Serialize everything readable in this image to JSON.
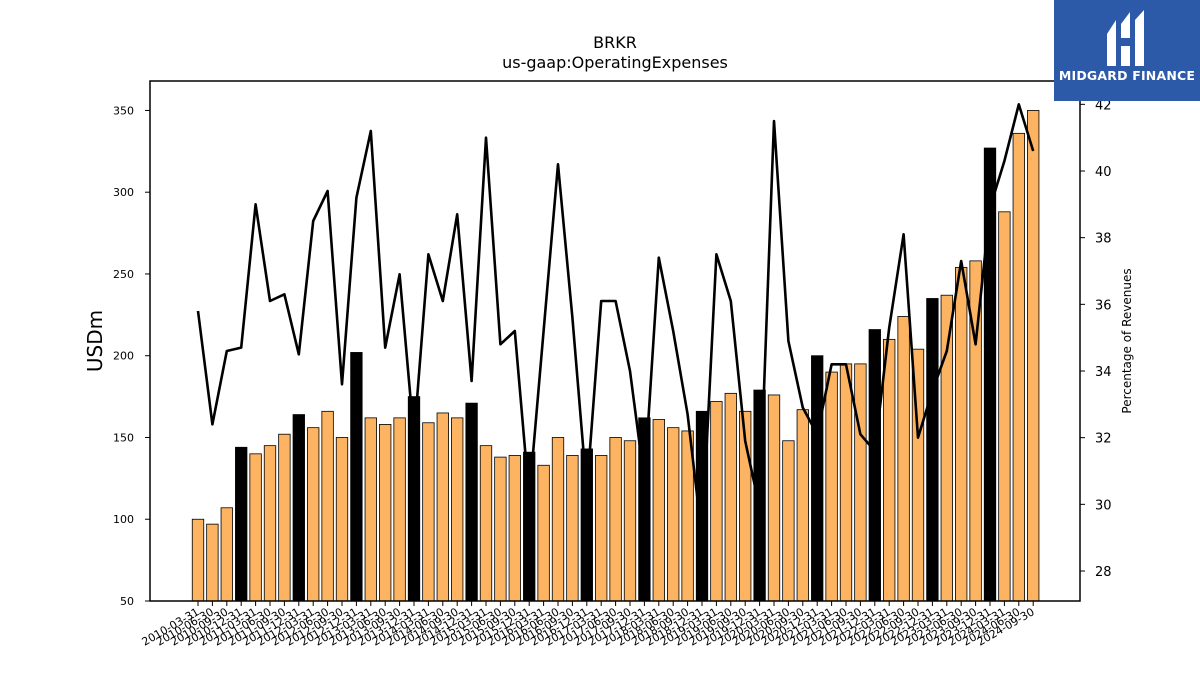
{
  "logo": {
    "text": "MIDGARD FINANCE",
    "background": "#2d5aa8"
  },
  "chart_data": {
    "type": "bar",
    "title": "BRKR",
    "subtitle": "us-gaap:OperatingExpenses",
    "ylabel": "USDm",
    "ylabel_right": "Percentage of Revenues",
    "ylim": [
      50,
      368
    ],
    "ylim_right": [
      27.1,
      42.7
    ],
    "yticks": [
      50,
      100,
      150,
      200,
      250,
      300,
      350
    ],
    "yticks_right": [
      28,
      30,
      32,
      34,
      36,
      38,
      40,
      42
    ],
    "grid": false,
    "legend": "none",
    "colors": {
      "quarter_bar": "#fdb462",
      "year_end_bar": "#000000",
      "line": "#000000"
    },
    "categories": [
      "2010-03-31",
      "2010-06-30",
      "2010-09-30",
      "2010-12-31",
      "2011-03-31",
      "2011-06-30",
      "2011-09-30",
      "2011-12-31",
      "2012-03-31",
      "2012-06-30",
      "2012-09-30",
      "2012-12-31",
      "2013-03-31",
      "2013-06-30",
      "2013-09-30",
      "2013-12-31",
      "2014-03-31",
      "2014-06-30",
      "2014-09-30",
      "2014-12-31",
      "2015-03-31",
      "2015-06-30",
      "2015-09-30",
      "2015-12-31",
      "2016-03-31",
      "2016-06-30",
      "2016-09-30",
      "2016-12-31",
      "2017-03-31",
      "2017-06-30",
      "2017-09-30",
      "2017-12-31",
      "2018-03-31",
      "2018-06-30",
      "2018-09-30",
      "2018-12-31",
      "2019-03-31",
      "2019-06-30",
      "2019-09-30",
      "2019-12-31",
      "2020-03-31",
      "2020-06-30",
      "2020-09-30",
      "2020-12-31",
      "2021-03-31",
      "2021-06-30",
      "2021-09-30",
      "2021-12-31",
      "2022-03-31",
      "2022-06-30",
      "2022-09-30",
      "2022-12-31",
      "2023-03-31",
      "2023-06-30",
      "2023-09-30",
      "2023-12-31",
      "2024-03-31",
      "2024-06-30",
      "2024-09-30"
    ],
    "series": [
      {
        "type": "bar",
        "values": [
          100,
          97,
          107,
          144,
          140,
          145,
          152,
          164,
          156,
          166,
          150,
          202,
          162,
          158,
          162,
          175,
          159,
          165,
          162,
          171,
          145,
          138,
          139,
          141,
          133,
          150,
          139,
          143,
          139,
          150,
          148,
          162,
          161,
          156,
          154,
          166,
          172,
          177,
          166,
          179,
          176,
          148,
          167,
          200,
          190,
          195,
          195,
          216,
          210,
          224,
          204,
          235,
          237,
          254,
          258,
          327,
          288,
          336,
          350
        ]
      },
      {
        "type": "line",
        "axis": "right",
        "values": [
          35.8,
          32.4,
          34.6,
          34.7,
          39.0,
          36.1,
          36.3,
          34.5,
          38.5,
          39.4,
          33.6,
          39.2,
          41.2,
          34.7,
          36.9,
          32.0,
          37.5,
          36.1,
          38.7,
          33.7,
          41.0,
          34.8,
          35.2,
          30.2,
          35.2,
          40.2,
          35.6,
          30.4,
          36.1,
          36.1,
          34.0,
          30.7,
          37.4,
          35.2,
          32.7,
          29.0,
          37.5,
          36.1,
          31.9,
          29.9,
          41.5,
          34.9,
          32.9,
          32.1,
          34.2,
          34.2,
          32.1,
          31.6,
          35.3,
          38.1,
          32.0,
          33.4,
          34.6,
          37.3,
          34.8,
          38.9,
          40.3,
          42.0,
          40.6
        ]
      }
    ]
  }
}
